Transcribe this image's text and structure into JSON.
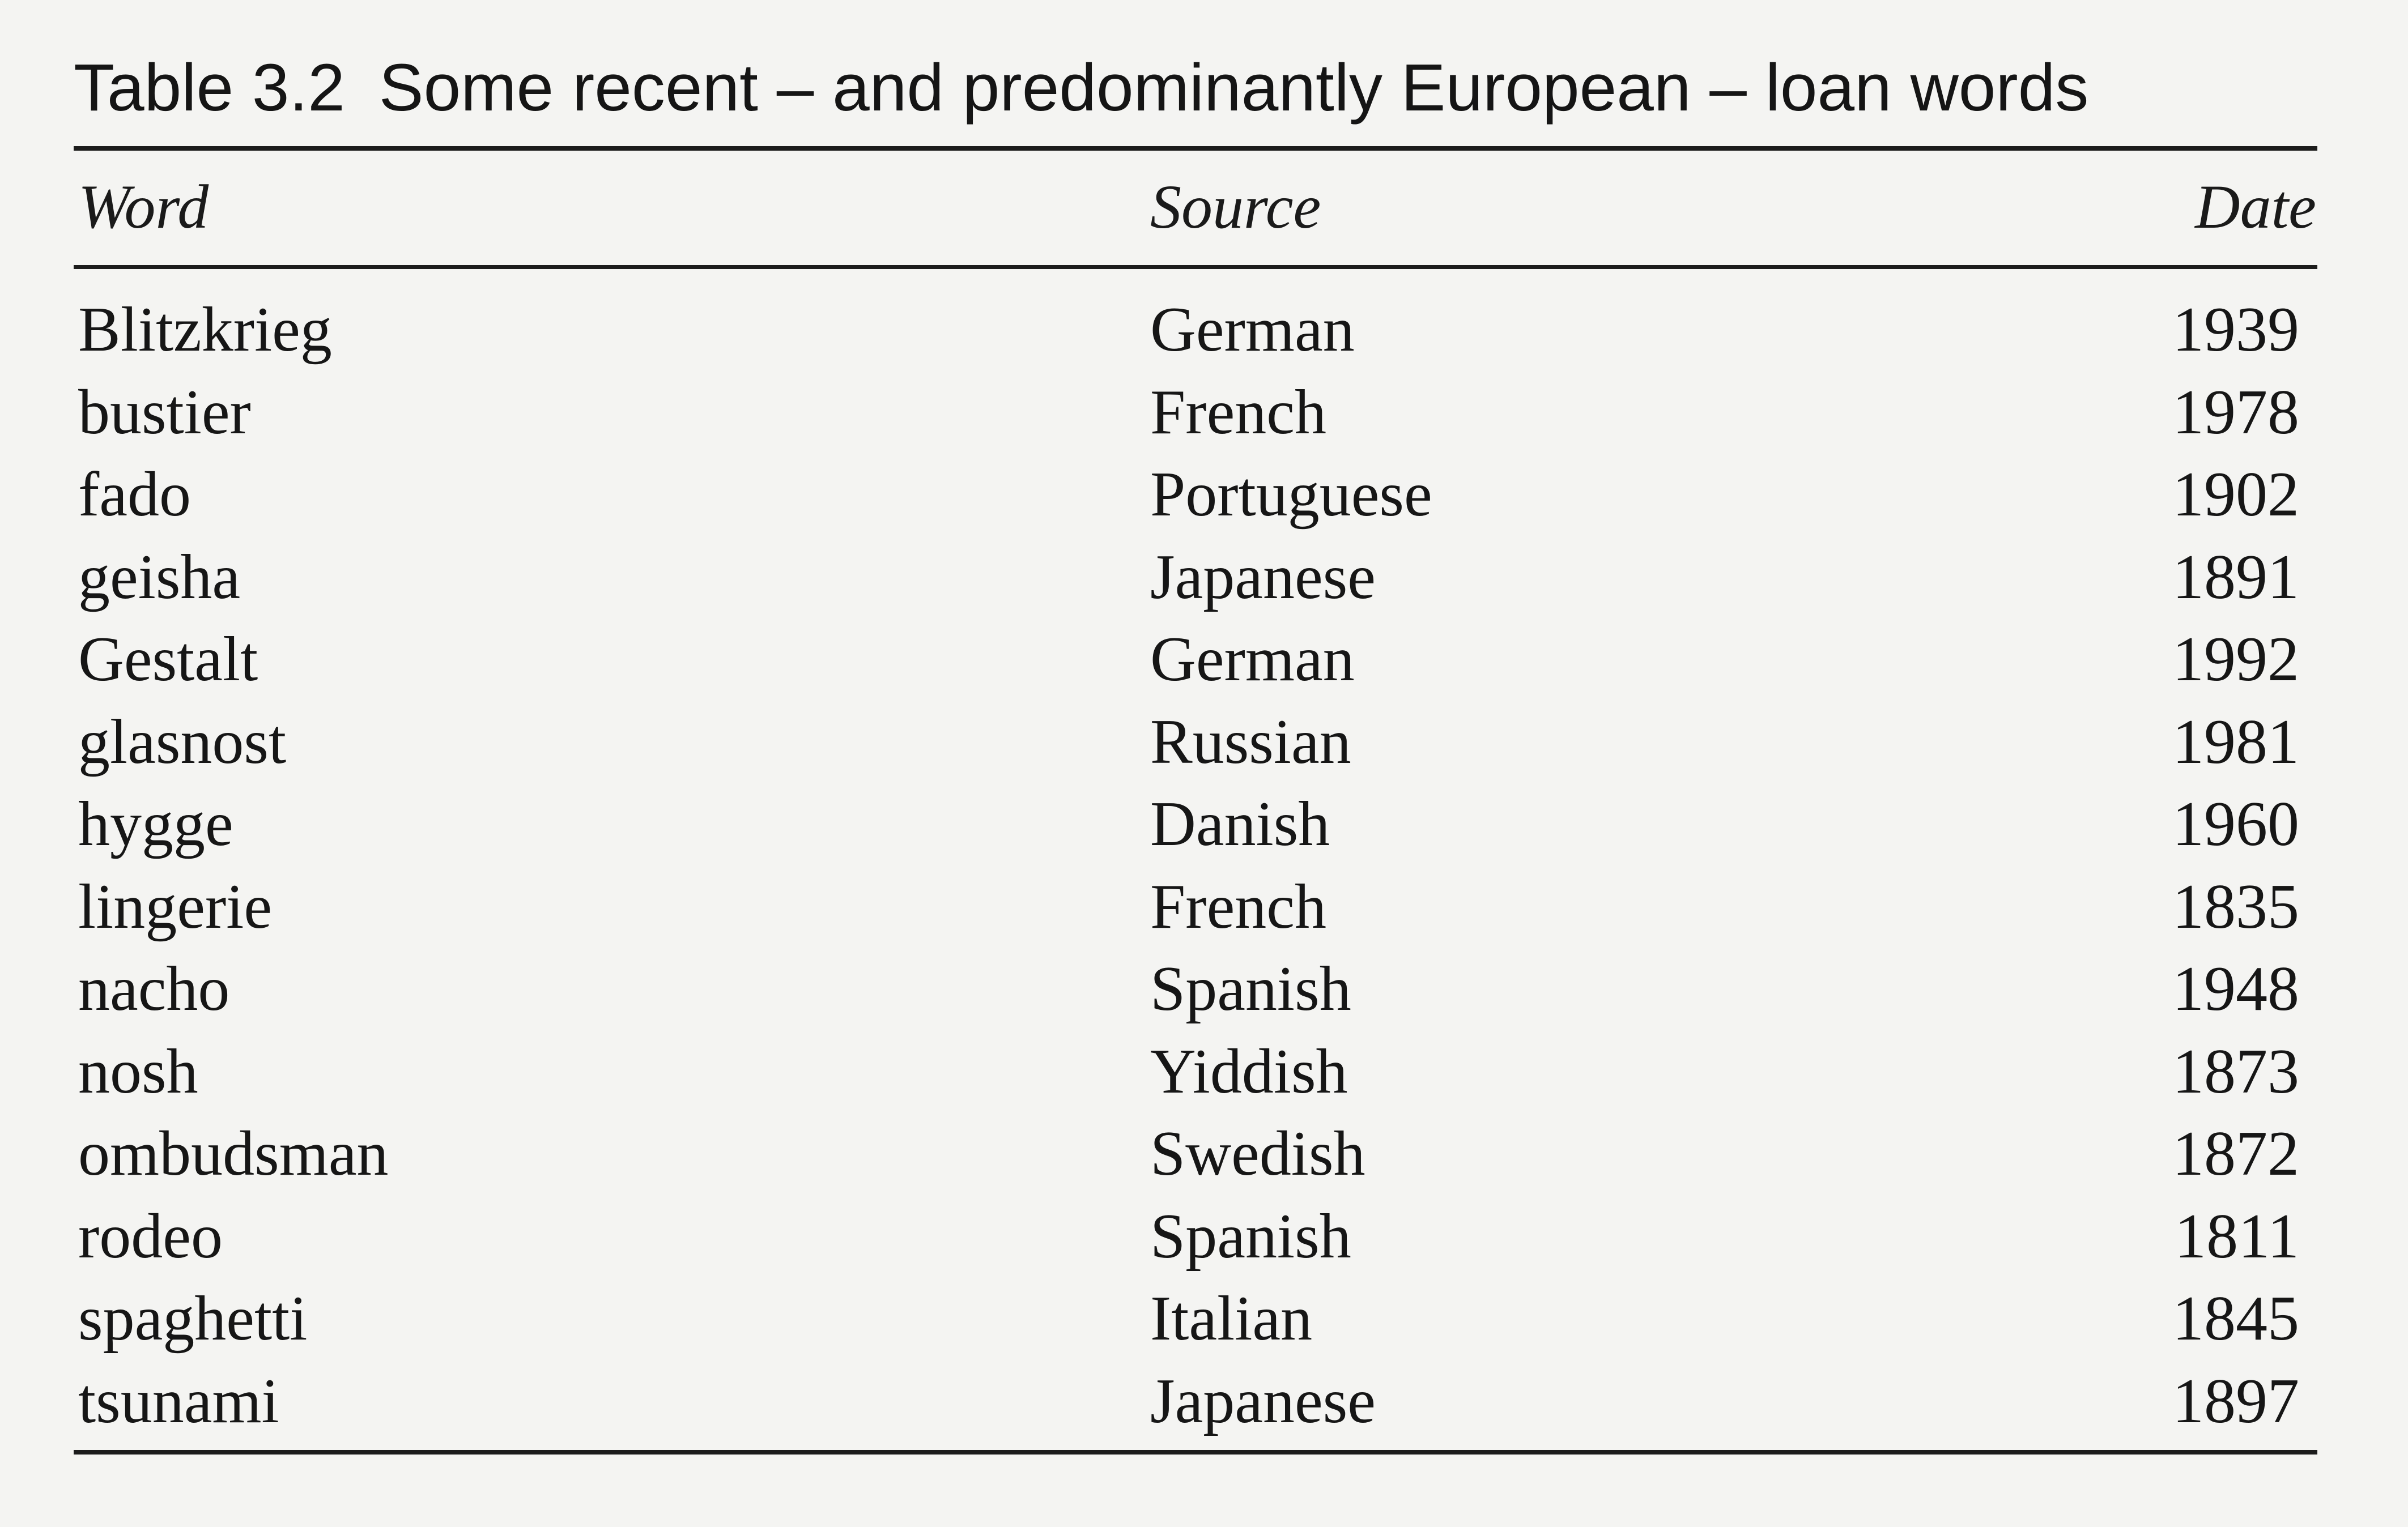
{
  "table": {
    "label": "Table 3.2",
    "title": "Some recent – and predominantly European – loan words",
    "headers": {
      "word": "Word",
      "source": "Source",
      "date": "Date"
    },
    "rows": [
      {
        "word": "Blitzkrieg",
        "source": "German",
        "date": "1939"
      },
      {
        "word": "bustier",
        "source": "French",
        "date": "1978"
      },
      {
        "word": "fado",
        "source": "Portuguese",
        "date": "1902"
      },
      {
        "word": "geisha",
        "source": "Japanese",
        "date": "1891"
      },
      {
        "word": "Gestalt",
        "source": "German",
        "date": "1992"
      },
      {
        "word": "glasnost",
        "source": "Russian",
        "date": "1981"
      },
      {
        "word": "hygge",
        "source": "Danish",
        "date": "1960"
      },
      {
        "word": "lingerie",
        "source": "French",
        "date": "1835"
      },
      {
        "word": "nacho",
        "source": "Spanish",
        "date": "1948"
      },
      {
        "word": "nosh",
        "source": "Yiddish",
        "date": "1873"
      },
      {
        "word": "ombudsman",
        "source": "Swedish",
        "date": "1872"
      },
      {
        "word": "rodeo",
        "source": "Spanish",
        "date": "1811"
      },
      {
        "word": "spaghetti",
        "source": "Italian",
        "date": "1845"
      },
      {
        "word": "tsunami",
        "source": "Japanese",
        "date": "1897"
      }
    ]
  }
}
